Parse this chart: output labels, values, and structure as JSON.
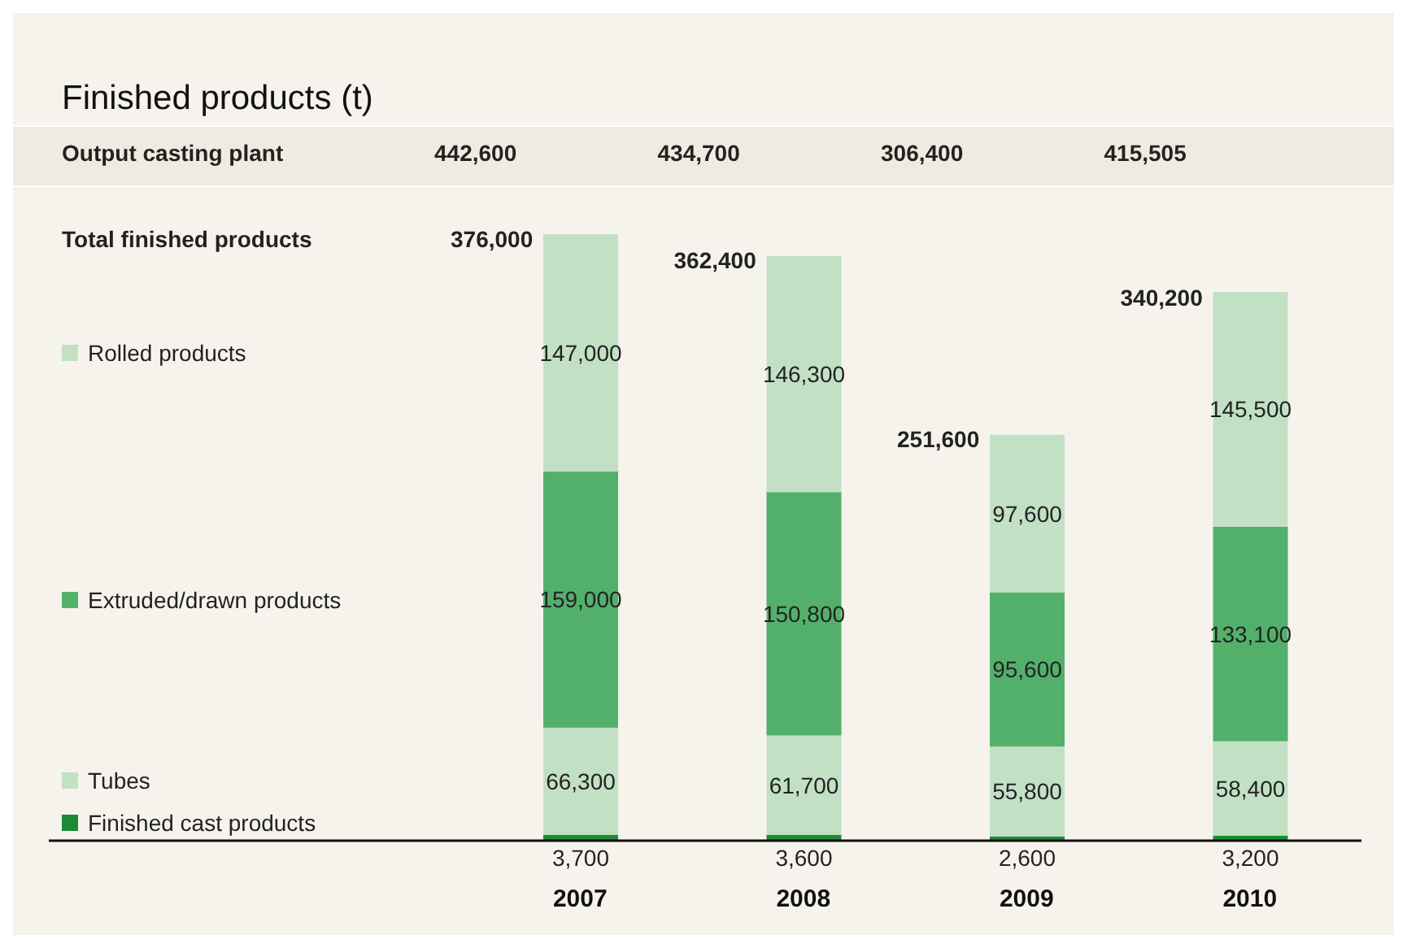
{
  "chart_data": {
    "type": "bar",
    "title": "Finished products (t)",
    "stacked": true,
    "legend": "left",
    "grid": false,
    "categories": [
      "2007",
      "2008",
      "2009",
      "2010"
    ],
    "series": [
      {
        "name": "Finished cast products",
        "color": "#1e8a36",
        "values": [
          3700,
          3600,
          2600,
          3200
        ],
        "value_labels": [
          "3,700",
          "3,600",
          "2,600",
          "3,200"
        ]
      },
      {
        "name": "Tubes",
        "color": "#c1e0c4",
        "values": [
          66300,
          61700,
          55800,
          58400
        ],
        "value_labels": [
          "66,300",
          "61,700",
          "55,800",
          "58,400"
        ]
      },
      {
        "name": "Extruded/drawn products",
        "color": "#52b06b",
        "values": [
          159000,
          150800,
          95600,
          133100
        ],
        "value_labels": [
          "159,000",
          "150,800",
          "95,600",
          "133,100"
        ]
      },
      {
        "name": "Rolled products",
        "color": "#c1e0c4",
        "values": [
          147000,
          146300,
          97600,
          145500
        ],
        "value_labels": [
          "147,000",
          "146,300",
          "97,600",
          "145,500"
        ]
      }
    ],
    "totals": [
      "376,000",
      "362,400",
      "251,600",
      "340,200"
    ],
    "annotations": [
      "Total finished products",
      "Output casting plant",
      "442,600",
      "434,700",
      "306,400",
      "415,505"
    ]
  }
}
